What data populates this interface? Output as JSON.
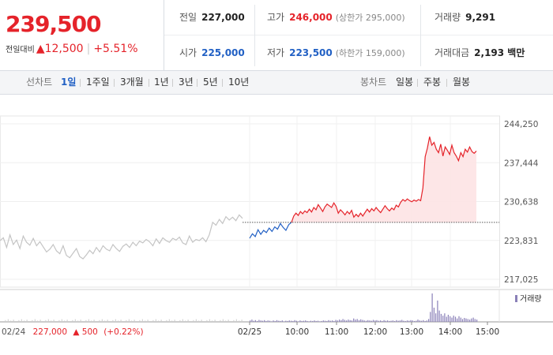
{
  "quote": {
    "price": "239,500",
    "change_label": "전일대비",
    "change_arrow": "▲",
    "change_value": "12,500",
    "change_pct": "+5.51%"
  },
  "stats": {
    "prev_label": "전일",
    "prev_value": "227,000",
    "high_label": "고가",
    "high_value": "246,000",
    "high_limit": "(상한가 295,000)",
    "volume_label": "거래량",
    "volume_value": "9,291",
    "open_label": "시가",
    "open_value": "225,000",
    "low_label": "저가",
    "low_value": "223,500",
    "low_limit": "(하한가 159,000)",
    "amount_label": "거래대금",
    "amount_value": "2,193 백만"
  },
  "tabs": {
    "line_label": "선차트",
    "line_periods": [
      "1일",
      "1주일",
      "3개월",
      "1년",
      "3년",
      "5년",
      "10년"
    ],
    "active_period": "1일",
    "candle_label": "봉차트",
    "candle_periods": [
      "일봉",
      "주봉",
      "월봉"
    ]
  },
  "colors": {
    "up": "#e5232a",
    "down": "#2160c4",
    "prev_day": "#c4c4c4",
    "volume": "#8a80b8"
  },
  "chart_data": {
    "type": "line",
    "y_ticks": [
      "244,250",
      "237,444",
      "230,638",
      "223,831",
      "217,025"
    ],
    "ylim": [
      217025,
      244250
    ],
    "reference_price": 227000,
    "x_ticks": [
      "02/25",
      "10:00",
      "11:00",
      "12:00",
      "13:00",
      "14:00",
      "15:00"
    ],
    "prev_day_info": {
      "date": "02/24",
      "close": "227,000",
      "arrow": "▲",
      "change": "500",
      "pct": "(+0.22%)"
    },
    "volume_legend": "거래량",
    "series": [
      {
        "values": [
          223800,
          224300,
          222600,
          224800,
          223100,
          223900,
          222400,
          224600,
          223500,
          223000,
          224200,
          222900,
          223600,
          222700,
          221800,
          222300,
          223100,
          222000,
          221500,
          222900,
          221200,
          220800,
          221600,
          222400,
          221000,
          220600,
          221300,
          222100,
          221500,
          222600,
          221800,
          222900,
          222300,
          222000,
          223100,
          222400,
          221900,
          222800,
          223200,
          222600,
          223500,
          222900,
          223700,
          223400,
          224000,
          223600,
          222900,
          224100,
          223300,
          224300,
          223800,
          223500,
          224200,
          223900,
          224400,
          223400,
          223100,
          224600,
          223500,
          224000,
          223800,
          224300,
          223600,
          224800,
          227000,
          226500,
          227500,
          226800,
          228000,
          227400,
          227900,
          227300,
          228300,
          227700
        ]
      },
      {
        "values": [
          224200,
          225000,
          224500,
          225700,
          224900,
          225600,
          225200,
          226000,
          225400,
          226200,
          225800,
          226800,
          226100,
          225600,
          226600,
          227000
        ]
      },
      {
        "values": [
          227000,
          228100,
          228600,
          228200,
          228900,
          228500,
          229000,
          228700,
          229300,
          228800,
          229600,
          229200,
          230100,
          229500,
          228900,
          229700,
          230200,
          229900,
          229600,
          230400,
          229800,
          228600,
          229200,
          228800,
          228300,
          228900,
          228500,
          229100,
          227900,
          228400,
          228000,
          228600,
          228100,
          228700,
          229300,
          228800,
          229400,
          229000,
          229600,
          229100,
          228700,
          229300,
          229900,
          229400,
          229000,
          229500,
          229200,
          230000,
          229700,
          230500,
          231000,
          230700,
          231100,
          230800,
          230600,
          230900,
          230700,
          231000,
          230800,
          233000,
          238500,
          240000,
          242000,
          240500,
          241000,
          239800,
          239200,
          240700,
          238600,
          240200,
          239600,
          238900,
          240500,
          239200,
          238600,
          237800,
          239200,
          238500,
          239800,
          239300,
          240200,
          239400,
          239100,
          239500
        ]
      }
    ],
    "volume_relative": [
      0.05,
      0.08,
      0.04,
      0.06,
      0.03,
      0.07,
      0.05,
      0.04,
      0.06,
      0.03,
      0.05,
      0.04,
      0.02,
      0.05,
      0.03,
      0.06,
      0.04,
      0.03,
      0.05,
      0.02,
      0.04,
      0.03,
      0.05,
      0.04,
      0.03,
      0.06,
      0.04,
      0.02,
      0.05,
      0.03,
      0.04,
      0.05,
      0.03,
      0.02,
      0.04,
      0.03,
      0.05,
      0.03,
      0.04,
      0.02,
      0.03,
      0.05,
      0.04,
      0.03,
      0.06,
      0.04,
      0.05,
      0.03,
      0.07,
      0.05,
      0.08,
      0.06,
      0.1,
      0.07,
      0.05,
      0.08,
      0.06,
      0.05,
      0.12,
      0.08,
      0.1,
      0.06,
      0.09,
      0.07,
      0.05,
      0.04,
      0.06,
      0.05,
      0.04,
      0.07,
      0.05,
      0.06,
      0.04,
      0.05,
      0.03,
      0.06,
      0.04,
      0.05,
      0.03,
      0.04,
      0.05,
      0.03,
      0.06,
      0.04,
      0.05,
      0.07,
      0.04,
      0.03,
      0.05,
      0.04,
      0.06,
      0.05,
      0.03,
      0.04,
      0.08,
      0.05,
      0.04,
      0.06,
      0.03,
      0.05,
      0.1,
      0.35,
      1.0,
      0.5,
      0.3,
      0.75,
      0.4,
      0.28,
      0.22,
      0.3,
      0.18,
      0.25,
      0.2,
      0.15,
      0.22,
      0.18,
      0.12,
      0.2,
      0.15,
      0.1,
      0.14,
      0.12,
      0.1,
      0.08,
      0.12,
      0.15,
      0.1,
      0.08
    ]
  }
}
